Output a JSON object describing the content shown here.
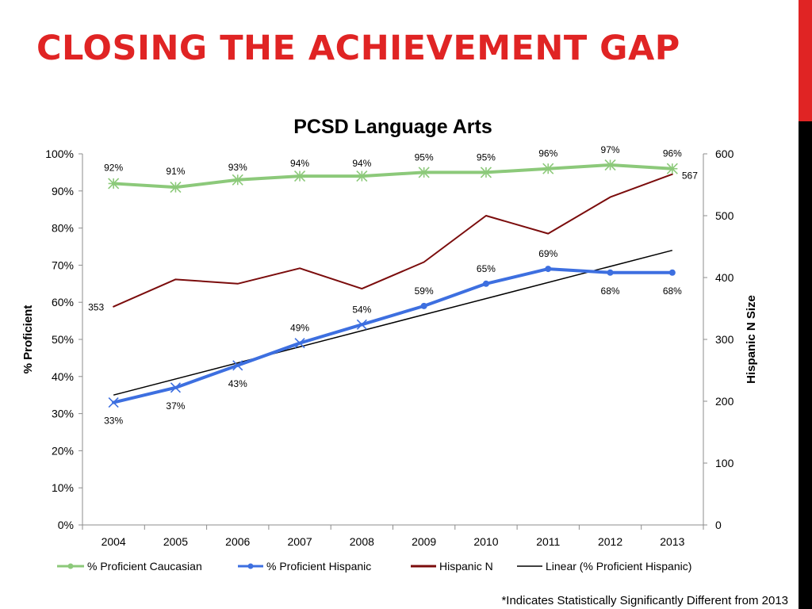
{
  "slide": {
    "title": "CLOSING THE ACHIEVEMENT GAP",
    "footnote": "*Indicates Statistically Significantly Different from 2013",
    "accent_color": "#e02424",
    "accent_bar_colors": [
      "#e02424",
      "#000000"
    ]
  },
  "chart_data": {
    "type": "line",
    "title": "PCSD Language Arts",
    "x": [
      "2004",
      "2005",
      "2006",
      "2007",
      "2008",
      "2009",
      "2010",
      "2011",
      "2012",
      "2013"
    ],
    "y_left": {
      "label": "% Proficient",
      "range": [
        0,
        100
      ],
      "ticks": [
        "0%",
        "10%",
        "20%",
        "30%",
        "40%",
        "50%",
        "60%",
        "70%",
        "80%",
        "90%",
        "100%"
      ]
    },
    "y_right": {
      "label": "Hispanic N Size",
      "range": [
        0,
        600
      ],
      "ticks": [
        "0",
        "100",
        "200",
        "300",
        "400",
        "500",
        "600"
      ]
    },
    "grid": false,
    "legend_position": "bottom",
    "series": [
      {
        "name": "% Proficient Caucasian",
        "axis": "left",
        "color": "#8cc97a",
        "marker": "asterisk",
        "values": [
          92,
          91,
          93,
          94,
          94,
          95,
          95,
          96,
          97,
          96
        ],
        "labels": [
          "92%",
          "91%",
          "93%",
          "94%",
          "94%",
          "95%",
          "95%",
          "96%",
          "97%",
          "96%"
        ]
      },
      {
        "name": "% Proficient Hispanic",
        "axis": "left",
        "color": "#3d6fe0",
        "marker": "mixed",
        "values": [
          33,
          37,
          43,
          49,
          54,
          59,
          65,
          69,
          68,
          68
        ],
        "labels": [
          "33%",
          "37%",
          "43%",
          "49%",
          "54%",
          "59%",
          "65%",
          "69%",
          "68%",
          "68%"
        ]
      },
      {
        "name": "Hispanic N",
        "axis": "right",
        "color": "#7b0c0c",
        "marker": "none",
        "values": [
          353,
          397,
          390,
          415,
          382,
          425,
          500,
          471,
          530,
          567
        ],
        "labels": [
          "353",
          "",
          "",
          "",
          "",
          "",
          "",
          "",
          "",
          "567"
        ]
      },
      {
        "name": "Linear (% Proficient Hispanic)",
        "axis": "left",
        "color": "#000000",
        "marker": "none",
        "trend_endpoints": [
          35,
          74
        ]
      }
    ]
  }
}
